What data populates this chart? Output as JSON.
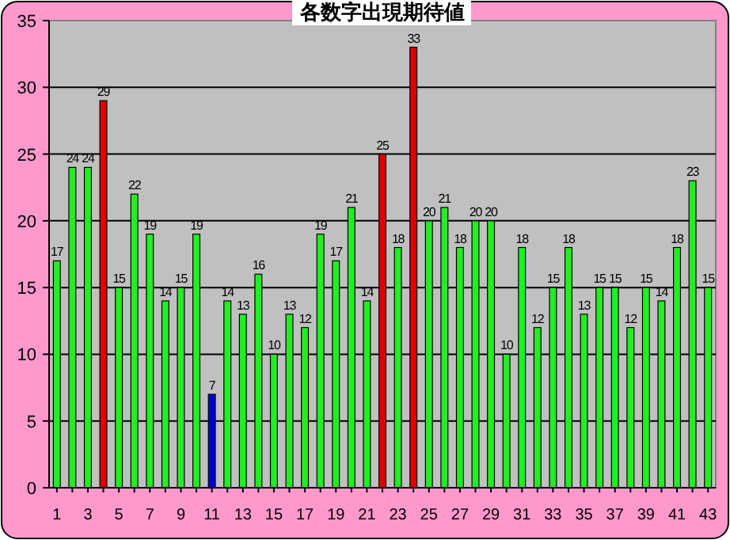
{
  "chart_data": {
    "type": "bar",
    "title": "各数字出現期待値",
    "categories": [
      "1",
      null,
      "3",
      null,
      "5",
      null,
      "7",
      null,
      "9",
      null,
      "11",
      null,
      "13",
      null,
      "15",
      null,
      "17",
      null,
      "19",
      null,
      "21",
      null,
      "23",
      null,
      "25",
      null,
      "27",
      null,
      "29",
      null,
      "31",
      null,
      "33",
      null,
      "35",
      null,
      "37",
      null,
      "39",
      null,
      "41",
      null,
      "43"
    ],
    "values": [
      17,
      24,
      24,
      29,
      15,
      22,
      19,
      14,
      15,
      19,
      7,
      14,
      13,
      16,
      10,
      13,
      12,
      19,
      17,
      21,
      14,
      25,
      18,
      33,
      20,
      21,
      18,
      20,
      20,
      10,
      18,
      12,
      15,
      18,
      13,
      15,
      15,
      12,
      15,
      14,
      18,
      23,
      15
    ],
    "colors": [
      "#22ee22",
      "#22ee22",
      "#22ee22",
      "#dd0000",
      "#22ee22",
      "#22ee22",
      "#22ee22",
      "#22ee22",
      "#22ee22",
      "#22ee22",
      "#0000cc",
      "#22ee22",
      "#22ee22",
      "#22ee22",
      "#22ee22",
      "#22ee22",
      "#22ee22",
      "#22ee22",
      "#22ee22",
      "#22ee22",
      "#22ee22",
      "#dd0000",
      "#22ee22",
      "#dd0000",
      "#22ee22",
      "#22ee22",
      "#22ee22",
      "#22ee22",
      "#22ee22",
      "#22ee22",
      "#22ee22",
      "#22ee22",
      "#22ee22",
      "#22ee22",
      "#22ee22",
      "#22ee22",
      "#22ee22",
      "#22ee22",
      "#22ee22",
      "#22ee22",
      "#22ee22",
      "#22ee22",
      "#22ee22"
    ],
    "ylim": [
      0,
      35
    ],
    "yticks": [
      0,
      5,
      10,
      15,
      20,
      25,
      30,
      35
    ],
    "grid": "y",
    "data_labels": true
  }
}
